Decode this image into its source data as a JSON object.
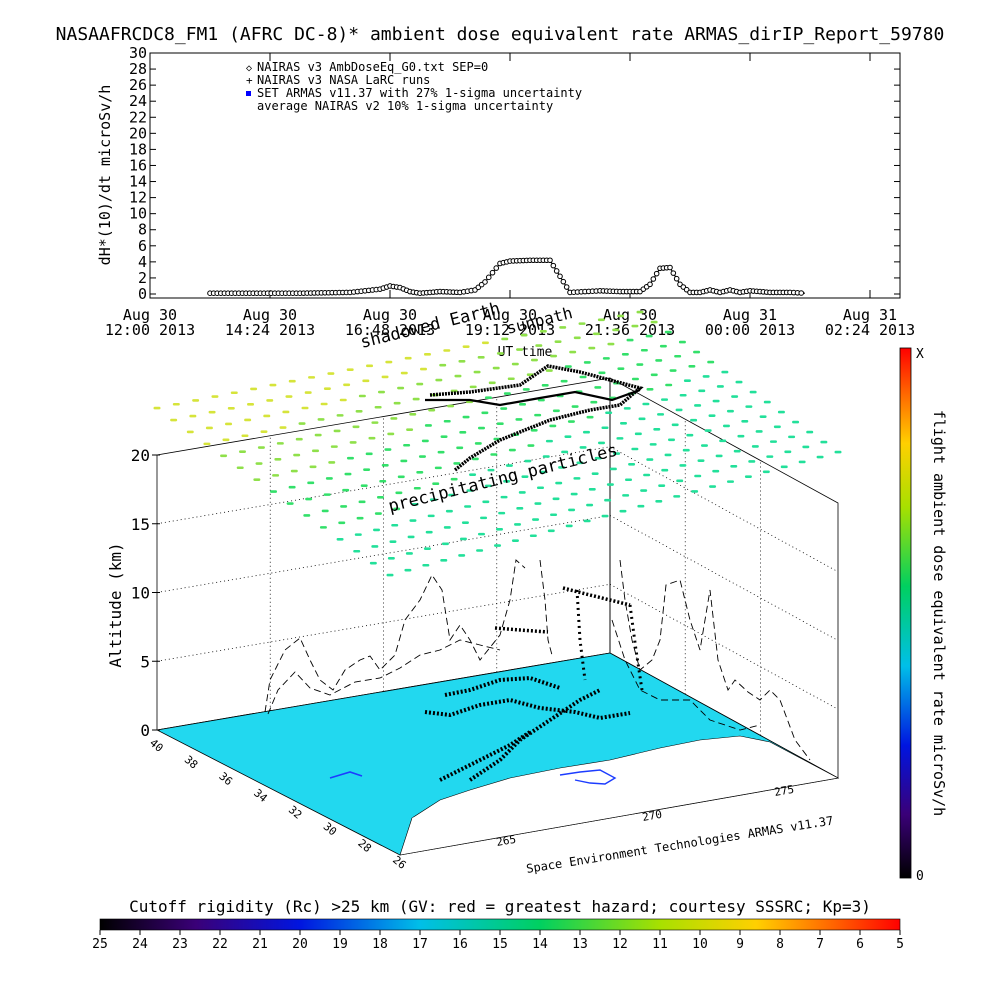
{
  "title": "NASAAFRCDC8_FM1 (AFRC DC-8)* ambient dose equivalent rate ARMAS_dirIP_Report_59780",
  "chart_data": [
    {
      "type": "line",
      "ylabel": "dH*(10)/dt microSv/h",
      "xlabel": "UT time",
      "ylim": [
        0,
        30
      ],
      "yticks": [
        "0",
        "2",
        "4",
        "6",
        "8",
        "10",
        "12",
        "14",
        "16",
        "18",
        "20",
        "22",
        "24",
        "26",
        "28",
        "30"
      ],
      "xticks": [
        {
          "l1": "Aug 30",
          "l2": "12:00 2013",
          "hours": 0
        },
        {
          "l1": "Aug 30",
          "l2": "14:24 2013",
          "hours": 2.4
        },
        {
          "l1": "Aug 30",
          "l2": "16:48 2013",
          "hours": 4.8
        },
        {
          "l1": "Aug 30",
          "l2": "19:12 2013",
          "hours": 7.2
        },
        {
          "l1": "Aug 30",
          "l2": "21:36 2013",
          "hours": 9.6
        },
        {
          "l1": "Aug 31",
          "l2": "00:00 2013",
          "hours": 12.0
        },
        {
          "l1": "Aug 31",
          "l2": "02:24 2013",
          "hours": 14.4
        }
      ],
      "legend": [
        {
          "marker": "◇",
          "label": "NAIRAS v3 AmbDoseEq_G0.txt SEP=0",
          "color": "#000000"
        },
        {
          "marker": "+",
          "label": "NAIRAS v3 NASA LaRC runs",
          "color": "#000000"
        },
        {
          "marker": "■",
          "label": "SET ARMAS v11.37 with 27% 1-sigma uncertainty",
          "color": "#0000ff"
        },
        {
          "marker": "",
          "label": "average NAIRAS v2 10% 1-sigma uncertainty",
          "color": "#000000"
        }
      ],
      "annotations": [
        "shadowed Earth",
        "sunpath"
      ],
      "series": [
        {
          "x_hours": [
            1.2,
            3.0,
            4.0,
            4.6,
            4.8,
            5.0,
            5.2,
            5.4,
            5.8,
            6.2,
            6.5,
            6.7,
            7.0,
            7.2,
            7.6,
            8.0,
            8.4,
            8.7,
            9.0,
            9.4,
            9.8,
            10.0,
            10.2,
            10.4,
            10.6,
            10.8,
            11.0,
            11.2,
            11.4,
            11.6,
            11.8,
            12.0,
            12.4,
            12.8,
            13.1
          ],
          "y": [
            0.1,
            0.1,
            0.2,
            0.6,
            1.0,
            0.8,
            0.3,
            0.1,
            0.3,
            0.2,
            0.5,
            1.5,
            3.8,
            4.1,
            4.2,
            4.2,
            0.2,
            0.3,
            0.4,
            0.3,
            0.3,
            1.2,
            3.2,
            3.3,
            1.2,
            0.2,
            0.2,
            0.5,
            0.2,
            0.5,
            0.2,
            0.4,
            0.2,
            0.2,
            0.1
          ]
        }
      ]
    },
    {
      "type": "scatter",
      "title": "precipitating particles",
      "zlabel": "Altitude (km)",
      "zticks": [
        "0",
        "5",
        "10",
        "15",
        "20"
      ],
      "lat_ticks": [
        "40",
        "38",
        "36",
        "34",
        "32",
        "30",
        "28",
        "26"
      ],
      "lon_ticks": [
        "265",
        "270",
        "275"
      ],
      "credit": "Space Environment Technologies ARMAS v11.37",
      "colorbar_label": "flight ambient dose equivalent rate microSv/h",
      "colorbar_top": "X",
      "colorbar_bottom": "0"
    },
    {
      "type": "heatmap",
      "title": "Cutoff rigidity (Rc) >25 km (GV: red = greatest hazard; courtesy SSSRC; Kp=3)",
      "ticks": [
        "25",
        "24",
        "23",
        "22",
        "21",
        "20",
        "19",
        "18",
        "17",
        "16",
        "15",
        "14",
        "13",
        "12",
        "11",
        "10",
        "9",
        "8",
        "7",
        "6",
        "5"
      ]
    }
  ],
  "colors": {
    "ocean": "#22d8ef",
    "land": "#ffffff",
    "track": "#000000",
    "cell_green": "#33e06a",
    "cell_yellow": "#d6e43a"
  }
}
